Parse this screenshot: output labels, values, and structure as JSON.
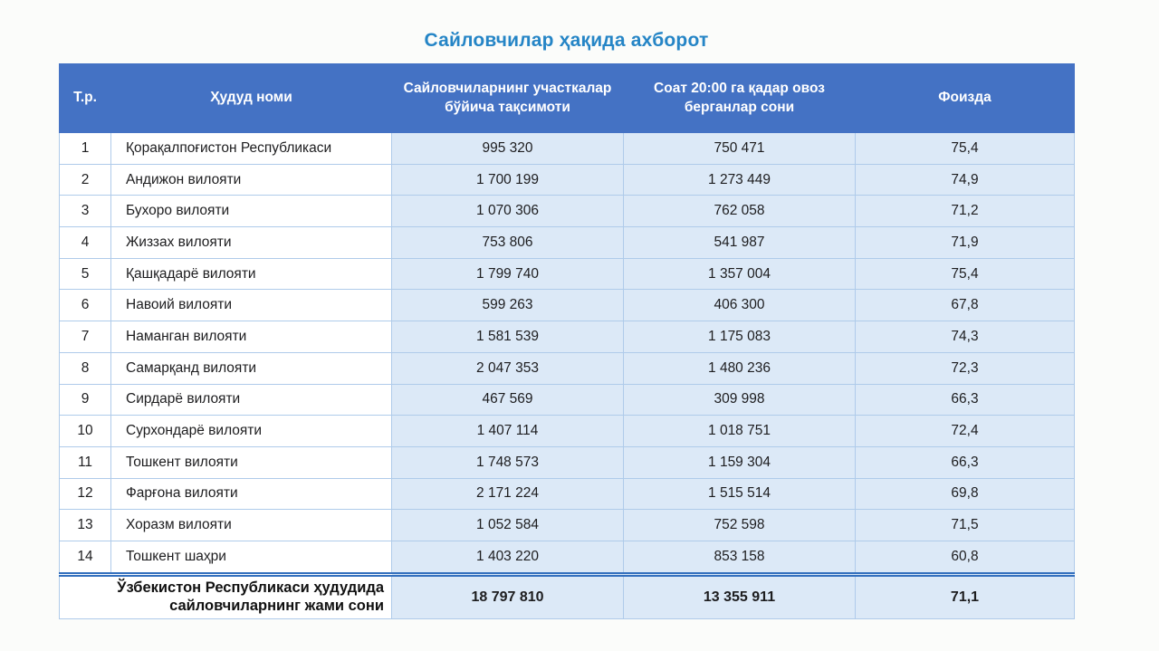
{
  "title": "Сайловчилар ҳақида ахборот",
  "colors": {
    "title_text": "#2585C6",
    "header_bg": "#4472C4",
    "header_text": "#FFFFFF",
    "numeric_cell_bg": "#DCE9F7",
    "grid_line": "#AFCBEA",
    "total_divider": "#3470BE"
  },
  "table": {
    "headers": [
      "Т.р.",
      "Ҳудуд номи",
      "Сайловчиларнинг участкалар бўйича тақсимоти",
      "Соат 20:00 га қадар овоз берганлар сони",
      "Фоизда"
    ],
    "rows": [
      [
        "1",
        "Қорақалпоғистон Республикаси",
        "995 320",
        "750 471",
        "75,4"
      ],
      [
        "2",
        "Андижон вилояти",
        "1 700 199",
        "1 273 449",
        "74,9"
      ],
      [
        "3",
        "Бухоро вилояти",
        "1 070 306",
        "762 058",
        "71,2"
      ],
      [
        "4",
        "Жиззах вилояти",
        "753 806",
        "541 987",
        "71,9"
      ],
      [
        "5",
        "Қашқадарё вилояти",
        "1 799 740",
        "1 357 004",
        "75,4"
      ],
      [
        "6",
        "Навоий вилояти",
        "599 263",
        "406 300",
        "67,8"
      ],
      [
        "7",
        "Наманган вилояти",
        "1 581 539",
        "1 175 083",
        "74,3"
      ],
      [
        "8",
        "Самарқанд вилояти",
        "2 047 353",
        "1 480 236",
        "72,3"
      ],
      [
        "9",
        "Сирдарё вилояти",
        "467 569",
        "309 998",
        "66,3"
      ],
      [
        "10",
        "Сурхондарё вилояти",
        "1 407 114",
        "1 018 751",
        "72,4"
      ],
      [
        "11",
        "Тошкент вилояти",
        "1 748 573",
        "1 159 304",
        "66,3"
      ],
      [
        "12",
        "Фарғона вилояти",
        "2 171 224",
        "1 515 514",
        "69,8"
      ],
      [
        "13",
        "Хоразм вилояти",
        "1 052 584",
        "752 598",
        "71,5"
      ],
      [
        "14",
        "Тошкент шаҳри",
        "1 403 220",
        "853 158",
        "60,8"
      ]
    ],
    "total": {
      "label": "Ўзбекистон Республикаси ҳудудида сайловчиларнинг жами сони",
      "voters": "18 797 810",
      "voted": "13 355 911",
      "percent": "71,1"
    }
  }
}
